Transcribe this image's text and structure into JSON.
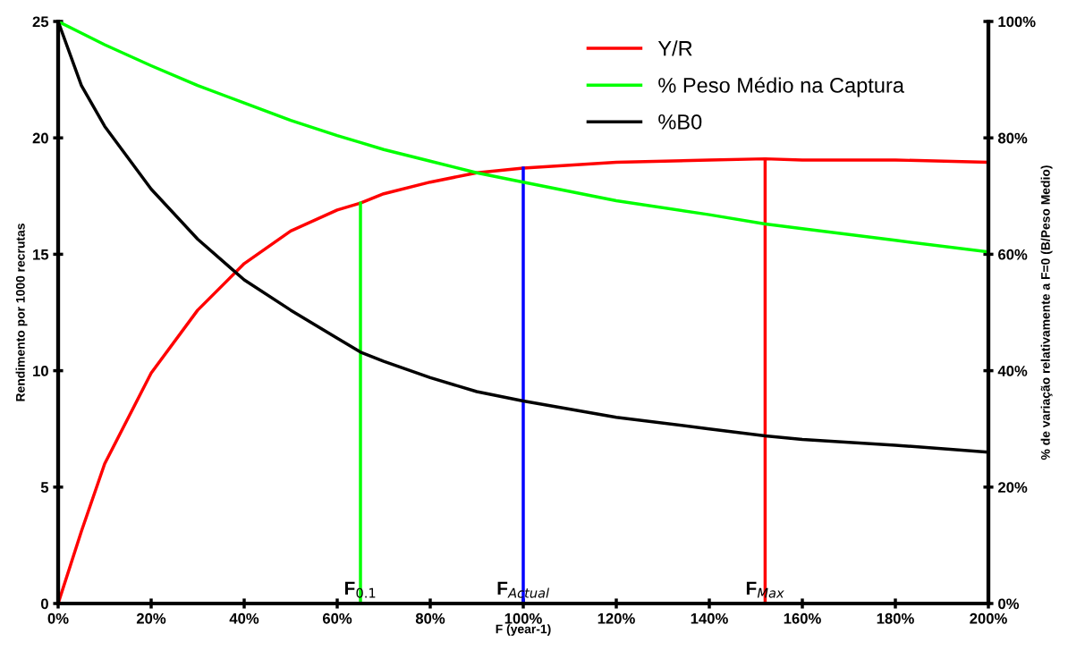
{
  "chart_data": {
    "type": "line",
    "xlabel": "F (year-1)",
    "ylabel": "Rendimento por 1000 recrutas",
    "y2label": "% de variação relativamente a F=0 (B/Peso Medio)",
    "x": [
      0,
      5,
      10,
      20,
      30,
      40,
      50,
      60,
      65,
      70,
      80,
      90,
      100,
      120,
      140,
      152,
      160,
      180,
      200
    ],
    "series": [
      {
        "name": "Y/R",
        "color": "#ff0000",
        "values": [
          0,
          3.1,
          6.0,
          9.9,
          12.6,
          14.6,
          16.0,
          16.9,
          17.2,
          17.6,
          18.1,
          18.5,
          18.7,
          18.95,
          19.05,
          19.1,
          19.05,
          19.05,
          18.95
        ]
      },
      {
        "name": "% Peso Médio na Captura",
        "color": "#00ff00",
        "axis": "y2",
        "values": [
          100,
          98,
          96,
          92.4,
          89,
          86,
          83,
          80.4,
          79.2,
          78,
          76,
          74,
          72.4,
          69.2,
          66.8,
          65.2,
          64.4,
          62.4,
          60.4
        ]
      },
      {
        "name": "%B0",
        "color": "#000000",
        "axis": "y2",
        "values": [
          100,
          89,
          82,
          71.2,
          62.6,
          55.6,
          50.4,
          45.6,
          43.2,
          41.6,
          38.8,
          36.4,
          34.8,
          32,
          30,
          28.8,
          28.2,
          27.2,
          26
        ]
      },
      {
        "color": "#00ff00",
        "x": [
          65,
          65
        ],
        "values": [
          0,
          17.2
        ]
      },
      {
        "color": "#0000ff",
        "x": [
          100,
          100
        ],
        "values": [
          0,
          18.7
        ]
      },
      {
        "color": "#ff0000",
        "x": [
          152,
          152
        ],
        "values": [
          0,
          19.1
        ]
      }
    ],
    "annotations": [
      {
        "text": "F$_{0.1}$",
        "x": 65,
        "y": 0
      },
      {
        "text": "F$_{Actual}$",
        "x": 100,
        "y": 0
      },
      {
        "text": "F$_{Max}$",
        "x": 152,
        "y": 0
      }
    ],
    "xlim": [
      0,
      200
    ],
    "xticks": [
      {
        "value": 0,
        "label": "0%"
      },
      {
        "value": 20,
        "label": "20%"
      },
      {
        "value": 40,
        "label": "40%"
      },
      {
        "value": 60,
        "label": "60%"
      },
      {
        "value": 80,
        "label": "80%"
      },
      {
        "value": 100,
        "label": "100%"
      },
      {
        "value": 120,
        "label": "120%"
      },
      {
        "value": 140,
        "label": "140%"
      },
      {
        "value": 160,
        "label": "160%"
      },
      {
        "value": 180,
        "label": "180%"
      },
      {
        "value": 200,
        "label": "200%"
      }
    ],
    "ylim": [
      0,
      25
    ],
    "yticks": [
      0,
      5,
      10,
      15,
      20,
      25
    ],
    "y2lim": [
      0,
      100
    ],
    "y2ticks": [
      {
        "value": 0,
        "label": "0%"
      },
      {
        "value": 20,
        "label": "20%"
      },
      {
        "value": 40,
        "label": "40%"
      },
      {
        "value": 60,
        "label": "60%"
      },
      {
        "value": 80,
        "label": "80%"
      },
      {
        "value": 100,
        "label": "100%"
      }
    ],
    "grid": false,
    "legend": "top right",
    "marker": "none",
    "line_style": "solid"
  }
}
